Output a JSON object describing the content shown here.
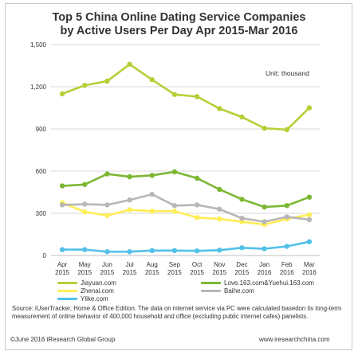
{
  "chart_data": {
    "type": "line",
    "title": "Top 5 China Online Dating Service Companies",
    "subtitle": "by Active Users Per Day  Apr 2015-Mar 2016",
    "unit_label": "Unit: thousand",
    "categories": [
      {
        "month": "Apr",
        "year": "2015"
      },
      {
        "month": "May",
        "year": "2015"
      },
      {
        "month": "Jun",
        "year": "2015"
      },
      {
        "month": "Jul",
        "year": "2015"
      },
      {
        "month": "Aug",
        "year": "2015"
      },
      {
        "month": "Sep",
        "year": "2015"
      },
      {
        "month": "Oct",
        "year": "2015"
      },
      {
        "month": "Nov",
        "year": "2015"
      },
      {
        "month": "Dec",
        "year": "2015"
      },
      {
        "month": "Jan",
        "year": "2016"
      },
      {
        "month": "Feb",
        "year": "2016"
      },
      {
        "month": "Mar",
        "year": "2016"
      }
    ],
    "ylim": [
      0,
      1500
    ],
    "yticks": [
      0,
      300,
      600,
      900,
      1200,
      1500
    ],
    "ytick_labels": [
      "0",
      "300",
      "600",
      "900",
      "1,200",
      "1,500"
    ],
    "grid": true,
    "legend_position": "bottom",
    "series": [
      {
        "name": "Jiayuan.com",
        "color": "#b5cf36",
        "values": [
          1150,
          1210,
          1240,
          1360,
          1250,
          1145,
          1130,
          1045,
          985,
          905,
          895,
          1050
        ]
      },
      {
        "name": "Love.163.com&Yuehui.163.com",
        "color": "#7cb733",
        "values": [
          495,
          505,
          580,
          560,
          570,
          595,
          550,
          470,
          400,
          345,
          355,
          415
        ]
      },
      {
        "name": "Zhenai.com",
        "color": "#ffee55",
        "values": [
          375,
          310,
          285,
          325,
          315,
          315,
          270,
          260,
          240,
          220,
          260,
          290
        ]
      },
      {
        "name": "Baihe.com",
        "color": "#b7b7b7",
        "values": [
          360,
          365,
          360,
          395,
          435,
          355,
          360,
          330,
          265,
          240,
          275,
          255
        ]
      },
      {
        "name": "Ylike.com",
        "color": "#52c1e8",
        "values": [
          42,
          42,
          27,
          27,
          35,
          35,
          33,
          38,
          55,
          48,
          65,
          98
        ]
      }
    ]
  },
  "source_text": "Source: iUserTracker, Home & Office Edition. The data on internet service via PC were calculated basedon its long-term measurement of online behavior of 400,000 household and office (excluding public internet cafes) panelists.",
  "footer": {
    "copyright": "©June 2016 iResearch Global Group",
    "website": "www.iresearchchina.com"
  }
}
